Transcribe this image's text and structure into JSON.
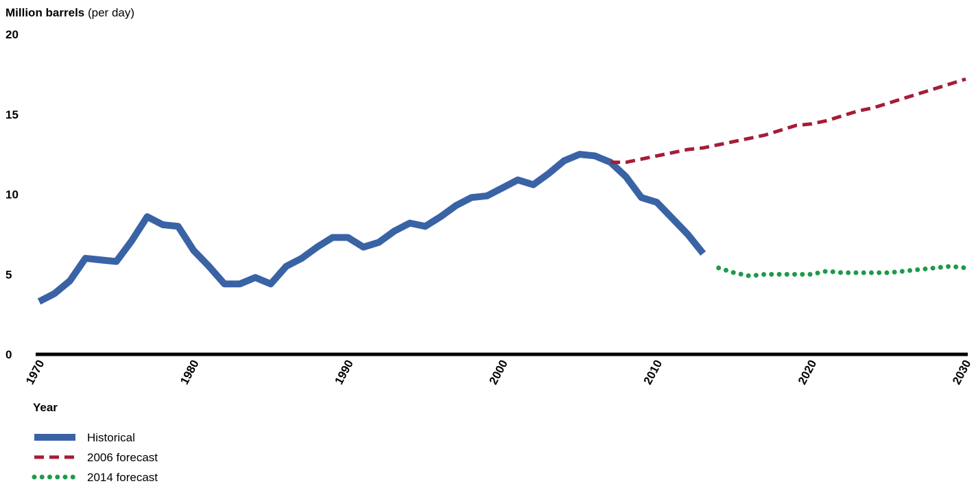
{
  "chart_data": {
    "type": "line",
    "ylabel": "Million barrels",
    "ylabel_note": "(per day)",
    "xlabel": "Year",
    "x": [
      1970,
      1971,
      1972,
      1973,
      1974,
      1975,
      1976,
      1977,
      1978,
      1979,
      1980,
      1981,
      1982,
      1983,
      1984,
      1985,
      1986,
      1987,
      1988,
      1989,
      1990,
      1991,
      1992,
      1993,
      1994,
      1995,
      1996,
      1997,
      1998,
      1999,
      2000,
      2001,
      2002,
      2003,
      2004,
      2005,
      2006,
      2007,
      2008,
      2009,
      2010,
      2011,
      2012,
      2013,
      2014,
      2015,
      2016,
      2017,
      2018,
      2019,
      2020,
      2021,
      2022,
      2023,
      2024,
      2025,
      2026,
      2027,
      2028,
      2029,
      2030
    ],
    "series": [
      {
        "name": "Historical",
        "color": "#3a63a5",
        "style": "solid",
        "values": [
          3.3,
          3.8,
          4.6,
          6.0,
          5.9,
          5.8,
          7.1,
          8.6,
          8.1,
          8.0,
          6.5,
          5.5,
          4.4,
          4.4,
          4.8,
          4.4,
          5.5,
          6.0,
          6.7,
          7.3,
          7.3,
          6.7,
          7.0,
          7.7,
          8.2,
          8.0,
          8.6,
          9.3,
          9.8,
          9.9,
          10.4,
          10.9,
          10.6,
          11.3,
          12.1,
          12.5,
          12.4,
          12.0,
          11.1,
          9.8,
          9.5,
          8.5,
          7.5,
          6.3,
          null,
          null,
          null,
          null,
          null,
          null,
          null,
          null,
          null,
          null,
          null,
          null,
          null,
          null,
          null,
          null,
          null
        ]
      },
      {
        "name": "2006 forecast",
        "color": "#a51d36",
        "style": "dashed",
        "values": [
          null,
          null,
          null,
          null,
          null,
          null,
          null,
          null,
          null,
          null,
          null,
          null,
          null,
          null,
          null,
          null,
          null,
          null,
          null,
          null,
          null,
          null,
          null,
          null,
          null,
          null,
          null,
          null,
          null,
          null,
          null,
          null,
          null,
          null,
          null,
          null,
          null,
          12.0,
          12.0,
          12.2,
          12.4,
          12.6,
          12.8,
          12.9,
          13.1,
          13.3,
          13.5,
          13.7,
          14.0,
          14.3,
          14.4,
          14.6,
          14.9,
          15.2,
          15.4,
          15.7,
          16.0,
          16.3,
          16.6,
          16.9,
          17.2
        ]
      },
      {
        "name": "2014 forecast",
        "color": "#1e9a4a",
        "style": "dotted",
        "values": [
          null,
          null,
          null,
          null,
          null,
          null,
          null,
          null,
          null,
          null,
          null,
          null,
          null,
          null,
          null,
          null,
          null,
          null,
          null,
          null,
          null,
          null,
          null,
          null,
          null,
          null,
          null,
          null,
          null,
          null,
          null,
          null,
          null,
          null,
          null,
          null,
          null,
          null,
          null,
          null,
          null,
          null,
          null,
          null,
          5.4,
          5.1,
          4.9,
          5.0,
          5.0,
          5.0,
          5.0,
          5.2,
          5.1,
          5.1,
          5.1,
          5.1,
          5.2,
          5.3,
          5.4,
          5.5,
          5.4
        ]
      }
    ],
    "xlim": [
      1970,
      2030
    ],
    "xticks": [
      1970,
      1980,
      1990,
      2000,
      2010,
      2020,
      2030
    ],
    "ylim": [
      0,
      20
    ],
    "yticks": [
      0,
      5,
      10,
      15,
      20
    ],
    "grid": false
  }
}
